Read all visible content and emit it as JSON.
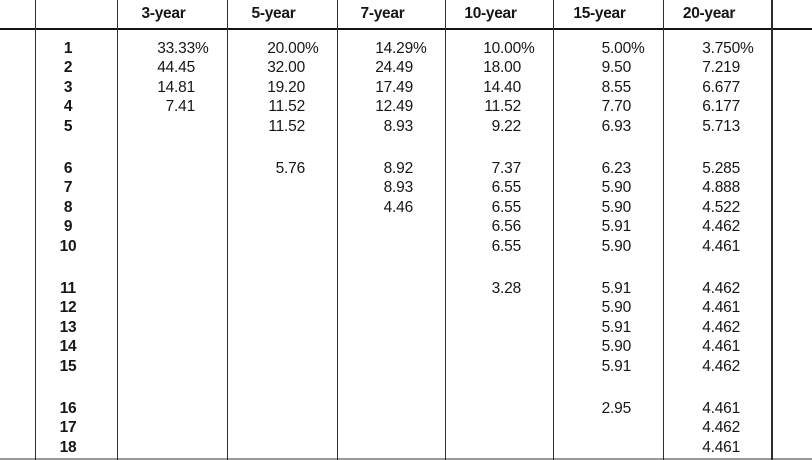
{
  "table": {
    "row_header_label": "",
    "column_headers": [
      "3-year",
      "5-year",
      "7-year",
      "10-year",
      "15-year",
      "20-year"
    ],
    "rows": [
      {
        "year": "1",
        "values": [
          "33.33%",
          "20.00%",
          "14.29%",
          "10.00%",
          "5.00%",
          "3.750%"
        ]
      },
      {
        "year": "2",
        "values": [
          "44.45",
          "32.00",
          "24.49",
          "18.00",
          "9.50",
          "7.219"
        ]
      },
      {
        "year": "3",
        "values": [
          "14.81",
          "19.20",
          "17.49",
          "14.40",
          "8.55",
          "6.677"
        ]
      },
      {
        "year": "4",
        "values": [
          "7.41",
          "11.52",
          "12.49",
          "11.52",
          "7.70",
          "6.177"
        ]
      },
      {
        "year": "5",
        "values": [
          "",
          "11.52",
          "8.93",
          "9.22",
          "6.93",
          "5.713"
        ]
      },
      {
        "year": "6",
        "values": [
          "",
          "5.76",
          "8.92",
          "7.37",
          "6.23",
          "5.285"
        ]
      },
      {
        "year": "7",
        "values": [
          "",
          "",
          "8.93",
          "6.55",
          "5.90",
          "4.888"
        ]
      },
      {
        "year": "8",
        "values": [
          "",
          "",
          "4.46",
          "6.55",
          "5.90",
          "4.522"
        ]
      },
      {
        "year": "9",
        "values": [
          "",
          "",
          "",
          "6.56",
          "5.91",
          "4.462"
        ]
      },
      {
        "year": "10",
        "values": [
          "",
          "",
          "",
          "6.55",
          "5.90",
          "4.461"
        ]
      },
      {
        "year": "11",
        "values": [
          "",
          "",
          "",
          "3.28",
          "5.91",
          "4.462"
        ]
      },
      {
        "year": "12",
        "values": [
          "",
          "",
          "",
          "",
          "5.90",
          "4.461"
        ]
      },
      {
        "year": "13",
        "values": [
          "",
          "",
          "",
          "",
          "5.91",
          "4.462"
        ]
      },
      {
        "year": "14",
        "values": [
          "",
          "",
          "",
          "",
          "5.90",
          "4.461"
        ]
      },
      {
        "year": "15",
        "values": [
          "",
          "",
          "",
          "",
          "5.91",
          "4.462"
        ]
      },
      {
        "year": "16",
        "values": [
          "",
          "",
          "",
          "",
          "2.95",
          "4.461"
        ]
      },
      {
        "year": "17",
        "values": [
          "",
          "",
          "",
          "",
          "",
          "4.462"
        ]
      },
      {
        "year": "18",
        "values": [
          "",
          "",
          "",
          "",
          "",
          "4.461"
        ]
      }
    ],
    "group_break_after_years": [
      "5",
      "10",
      "15"
    ],
    "colors": {
      "text": "#161616",
      "grid_line": "#2e2e2e",
      "header_rule": "#141414",
      "background": "#ffffff",
      "cut_edge": "#9a9a9a"
    }
  }
}
